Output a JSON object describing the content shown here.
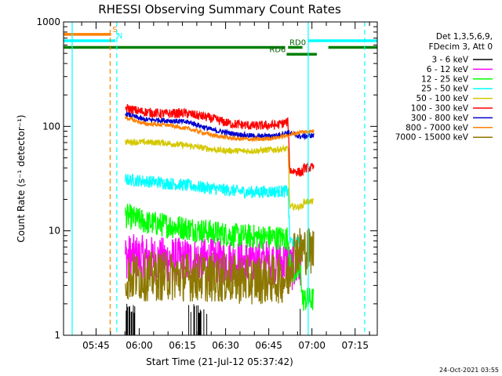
{
  "chart_data": {
    "type": "line",
    "title": "RHESSI Observing Summary Count Rates",
    "xlabel": "Start Time (21-Jul-12 05:37:42)",
    "ylabel": "Count Rate (s⁻¹ detector⁻¹)",
    "yscale": "log",
    "ylim": [
      1,
      1000
    ],
    "xlim_minutes": [
      -4,
      105
    ],
    "y_ticks": [
      {
        "value": 1,
        "label": "1"
      },
      {
        "value": 10,
        "label": "10"
      },
      {
        "value": 100,
        "label": "100"
      },
      {
        "value": 1000,
        "label": "1000"
      }
    ],
    "x_ticks": [
      {
        "value": 7.3,
        "label": "05:45"
      },
      {
        "value": 22.3,
        "label": "06:00"
      },
      {
        "value": 37.3,
        "label": "06:15"
      },
      {
        "value": 52.3,
        "label": "06:30"
      },
      {
        "value": 67.3,
        "label": "06:45"
      },
      {
        "value": 82.3,
        "label": "07:00"
      },
      {
        "value": 97.3,
        "label": "07:15"
      }
    ],
    "legend_header": [
      "Det 1,3,5,6,9,",
      "FDecim 3, Att 0"
    ],
    "series": [
      {
        "name": "3 - 6 keV",
        "color": "#000000",
        "start": 17.5,
        "end": 78.5,
        "points": [
          [
            17.5,
            1.3
          ],
          [
            40,
            1.3
          ],
          [
            77.5,
            1.3
          ],
          [
            78.5,
            1.3
          ]
        ],
        "noise": 0.9,
        "style": "spiky"
      },
      {
        "name": "6 - 12 keV",
        "color": "#ff00ff",
        "start": 17.5,
        "end": 78.5,
        "points": [
          [
            17.5,
            5.7
          ],
          [
            30,
            5.3
          ],
          [
            45,
            5.2
          ],
          [
            60,
            5.0
          ],
          [
            74,
            5.0
          ],
          [
            75,
            4.4
          ],
          [
            78.5,
            4.4
          ]
        ],
        "noise": 0.22
      },
      {
        "name": "12 - 25 keV",
        "color": "#00ff00",
        "start": 17.5,
        "end": 83,
        "points": [
          [
            17.5,
            14
          ],
          [
            25,
            12
          ],
          [
            35,
            11
          ],
          [
            45,
            10
          ],
          [
            55,
            9
          ],
          [
            74,
            8.5
          ],
          [
            75,
            4.2
          ],
          [
            76,
            4.0
          ],
          [
            78.5,
            4.0
          ],
          [
            79,
            2.2
          ],
          [
            83,
            2.2
          ]
        ],
        "noise": 0.12
      },
      {
        "name": "25 - 50 keV",
        "color": "#00ffff",
        "start": 17.5,
        "end": 79,
        "points": [
          [
            17.5,
            31
          ],
          [
            30,
            29
          ],
          [
            40,
            27
          ],
          [
            50,
            25
          ],
          [
            60,
            23.5
          ],
          [
            74,
            24
          ],
          [
            74.6,
            8
          ],
          [
            79,
            7.5
          ]
        ],
        "noise": 0.06
      },
      {
        "name": "50 - 100 keV",
        "color": "#d4c800",
        "start": 17.5,
        "end": 83,
        "points": [
          [
            17.5,
            71
          ],
          [
            30,
            70
          ],
          [
            40,
            65
          ],
          [
            50,
            59
          ],
          [
            60,
            58
          ],
          [
            74,
            61
          ],
          [
            74.6,
            17
          ],
          [
            79,
            17
          ],
          [
            79.5,
            19
          ],
          [
            83,
            19
          ]
        ],
        "noise": 0.03
      },
      {
        "name": "100 - 300 keV",
        "color": "#ff0000",
        "start": 17.5,
        "end": 83,
        "points": [
          [
            17.5,
            150
          ],
          [
            22,
            140
          ],
          [
            30,
            132
          ],
          [
            38,
            134
          ],
          [
            46,
            122
          ],
          [
            54,
            106
          ],
          [
            62,
            101
          ],
          [
            70,
            103
          ],
          [
            74,
            110
          ],
          [
            74.6,
            38
          ],
          [
            79,
            36
          ],
          [
            79.5,
            40
          ],
          [
            83,
            40
          ]
        ],
        "noise": 0.045
      },
      {
        "name": "300 - 800 keV",
        "color": "#0000d0",
        "start": 17.5,
        "end": 83,
        "points": [
          [
            17.5,
            132
          ],
          [
            24,
            116
          ],
          [
            32,
            114
          ],
          [
            40,
            109
          ],
          [
            48,
            92
          ],
          [
            56,
            84
          ],
          [
            64,
            80
          ],
          [
            70,
            82
          ],
          [
            74,
            88
          ],
          [
            78,
            80
          ],
          [
            83,
            82
          ]
        ],
        "noise": 0.025
      },
      {
        "name": "800 - 7000 keV",
        "color": "#ff8000",
        "start": 17.5,
        "end": 83,
        "points": [
          [
            17.5,
            122
          ],
          [
            24,
            106
          ],
          [
            32,
            103
          ],
          [
            40,
            94
          ],
          [
            48,
            82
          ],
          [
            56,
            76
          ],
          [
            64,
            75
          ],
          [
            70,
            78
          ],
          [
            74,
            82
          ],
          [
            78,
            88
          ],
          [
            83,
            90
          ]
        ],
        "noise": 0.02
      },
      {
        "name": "7000 - 15000 keV",
        "color": "#8c7800",
        "start": 17.5,
        "end": 83,
        "points": [
          [
            17.5,
            3.6
          ],
          [
            30,
            3.7
          ],
          [
            45,
            3.6
          ],
          [
            60,
            3.4
          ],
          [
            74,
            3.5
          ],
          [
            76,
            6.5
          ],
          [
            80,
            6.5
          ],
          [
            83,
            6.5
          ]
        ],
        "noise": 0.24
      }
    ],
    "flag_bars": [
      {
        "label": "S",
        "color": "#ff8000",
        "start": -4,
        "end": 12.5,
        "value": 760,
        "label_x": 13
      },
      {
        "label": "N",
        "color": "#00ffff",
        "start": -4,
        "end": 14,
        "value": 660,
        "label_x": 14.5
      },
      {
        "label": "N",
        "color": "#00ffff",
        "start": 81,
        "end": 105,
        "value": 660,
        "label_x": null
      },
      {
        "label": "",
        "color": "#008000",
        "start": -4,
        "end": 73,
        "value": 570,
        "label_x": null
      },
      {
        "label": "RD0",
        "color": "#008000",
        "start": 74,
        "end": 79,
        "value": 570,
        "label_x": 74.5
      },
      {
        "label": "",
        "color": "#008000",
        "start": 88,
        "end": 105,
        "value": 570,
        "label_x": null
      },
      {
        "label": "RD6",
        "color": "#008000",
        "start": 73.5,
        "end": 84,
        "value": 490,
        "label_x": 67.5
      }
    ],
    "vertical_markers": [
      {
        "time": -1,
        "color": "#00ffff",
        "style": "solid"
      },
      {
        "time": 12.2,
        "color": "#ff8000",
        "style": "dashed"
      },
      {
        "time": 14.5,
        "color": "#00ffff",
        "style": "dashed"
      },
      {
        "time": 81,
        "color": "#00ffff",
        "style": "solid"
      },
      {
        "time": 100.6,
        "color": "#00ffff",
        "style": "dashed"
      }
    ]
  },
  "footnote": "24-Oct-2021 03:55"
}
